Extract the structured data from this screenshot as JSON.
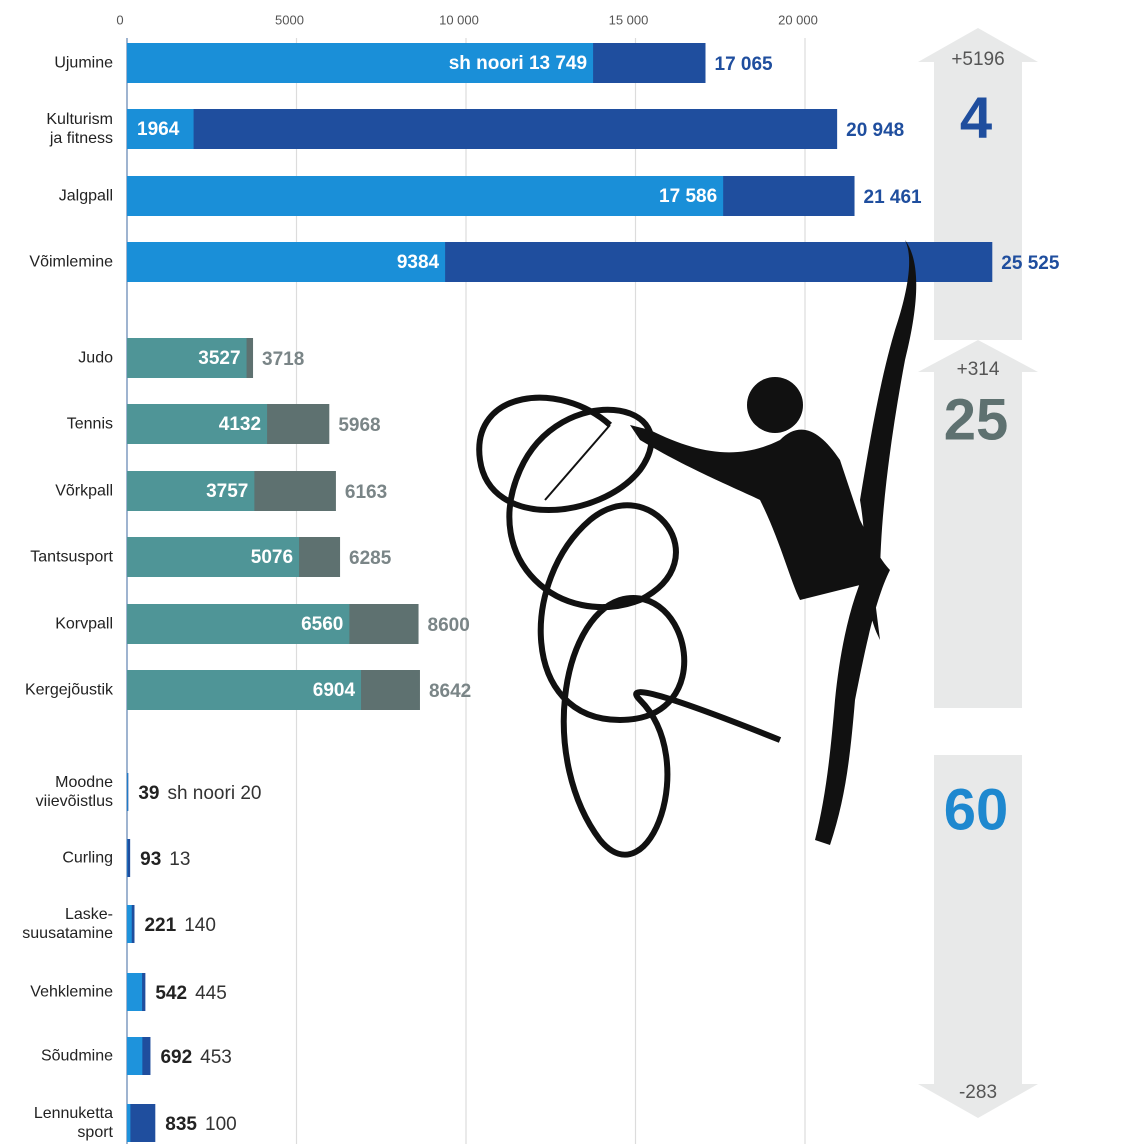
{
  "chart_data": {
    "type": "bar",
    "orientation": "horizontal",
    "categories": [
      "Ujumine",
      "Kulturism\nja fitness",
      "Jalgpall",
      "Võimlemine",
      "Judo",
      "Tennis",
      "Võrkpall",
      "Tantsusport",
      "Korvpall",
      "Kergejõustik",
      "Moodne\nviievõistlus",
      "Curling",
      "Laske-\nsuusatamine",
      "Vehklemine",
      "Sõudmine",
      "Lennuketta\nsport"
    ],
    "series": [
      {
        "values": [
          17065,
          20948,
          21461,
          25525,
          3718,
          5968,
          6163,
          6285,
          8600,
          8642,
          39,
          93,
          221,
          542,
          692,
          835
        ],
        "value_labels": [
          "17 065",
          "20 948",
          "21 461",
          "25 525",
          "3718",
          "5968",
          "6163",
          "6285",
          "8600",
          "8642",
          "39",
          "93",
          "221",
          "542",
          "692",
          "835"
        ],
        "colors": [
          "#1f4e9e",
          "#1f4e9e",
          "#1f4e9e",
          "#1f4e9e",
          "#5e7170",
          "#5e7170",
          "#5e7170",
          "#5e7170",
          "#5e7170",
          "#5e7170",
          "#1f4e9e",
          "#1f4e9e",
          "#1f4e9e",
          "#1f4e9e",
          "#1f4e9e",
          "#1f4e9e"
        ]
      },
      {
        "values": [
          13749,
          1964,
          17586,
          9384,
          3527,
          4132,
          3757,
          5076,
          6560,
          6904,
          20,
          13,
          140,
          445,
          453,
          100
        ],
        "value_labels": [
          "sh noori 13 749",
          "1964",
          "17 586",
          "9384",
          "3527",
          "4132",
          "3757",
          "5076",
          "6560",
          "6904",
          "sh noori 20",
          "13",
          "140",
          "445",
          "453",
          "100"
        ],
        "colors": [
          "#1a8fd8",
          "#1a8fd8",
          "#1a8fd8",
          "#1a8fd8",
          "#4f9597",
          "#4f9597",
          "#4f9597",
          "#4f9597",
          "#4f9597",
          "#4f9597",
          "#1e93dc",
          "#1e93dc",
          "#1e93dc",
          "#1e93dc",
          "#1e93dc",
          "#1e93dc"
        ]
      }
    ],
    "xlim": [
      0,
      30000
    ],
    "xticks": [
      0,
      5000,
      {
        "value": 10000,
        "label": "10 000"
      },
      {
        "value": 15000,
        "label": "15 000"
      },
      {
        "value": 20000,
        "label": "20 000"
      }
    ],
    "grid": true,
    "annotations": [
      {
        "change": "+5196",
        "rank": "4",
        "color": "#1f4e9e"
      },
      {
        "change": "+314",
        "rank": "25",
        "color": "#5e7170"
      },
      {
        "change": "-283",
        "rank": "60",
        "color": "#1e88cf"
      }
    ]
  }
}
